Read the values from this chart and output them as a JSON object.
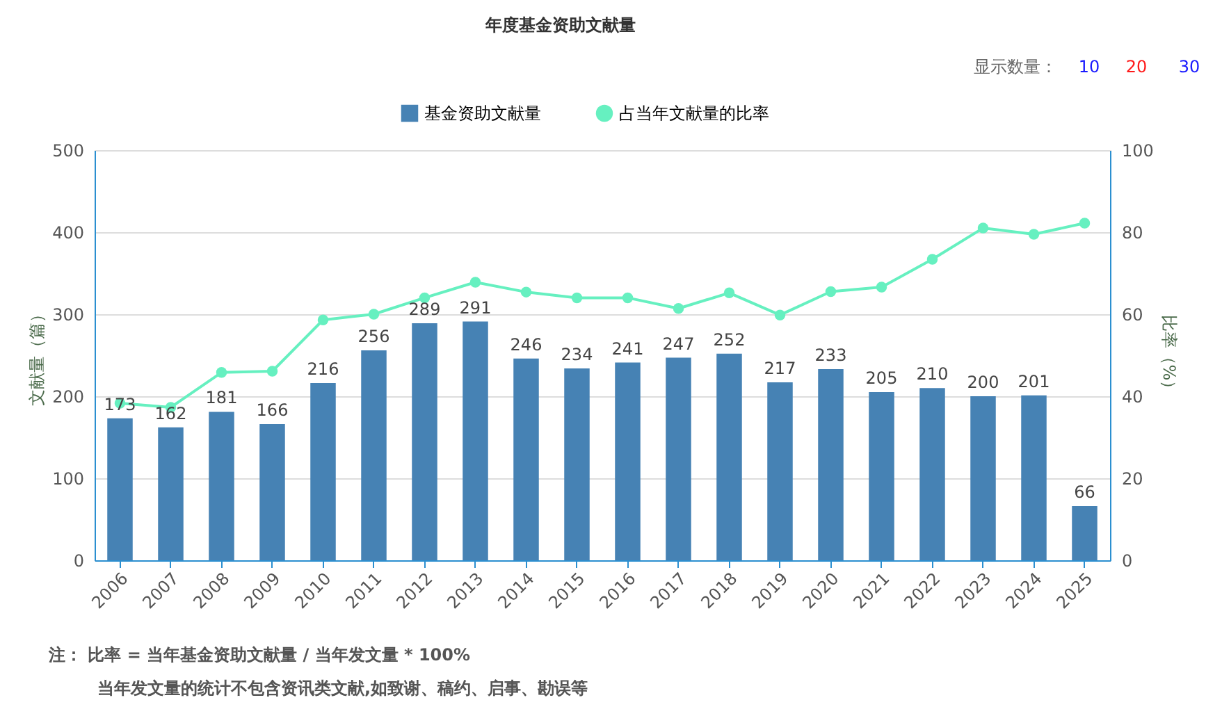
{
  "chart_data": {
    "type": "bar",
    "title": "年度基金资助文献量",
    "categories": [
      "2006",
      "2007",
      "2008",
      "2009",
      "2010",
      "2011",
      "2012",
      "2013",
      "2014",
      "2015",
      "2016",
      "2017",
      "2018",
      "2019",
      "2020",
      "2021",
      "2022",
      "2023",
      "2024",
      "2025"
    ],
    "series": [
      {
        "name": "基金资助文献量",
        "color": "#4682b4",
        "values": [
          173,
          162,
          181,
          166,
          216,
          256,
          289,
          291,
          246,
          234,
          241,
          247,
          252,
          217,
          233,
          205,
          210,
          200,
          201,
          66
        ],
        "value_labels": [
          "173",
          "162",
          "181",
          "166",
          "216",
          "256",
          "289",
          "291",
          "246",
          "234",
          "241",
          "247",
          "252",
          "217",
          "233",
          "205",
          "210",
          "200",
          "201",
          "66"
        ]
      },
      {
        "name": "占当年文献量的比率",
        "type": "line",
        "axis": "y2",
        "color": "#66f0c0",
        "marker": "circle",
        "values": [
          38.3,
          37.3,
          45.8,
          46.1,
          58.6,
          60.0,
          64.0,
          67.8,
          65.4,
          64.0,
          64.0,
          61.4,
          65.2,
          59.8,
          65.5,
          66.6,
          73.4,
          81.0,
          79.5,
          82.2
        ]
      }
    ],
    "ylabel": "文献量（篇）",
    "y2label": "比率（%）",
    "ylim": [
      0,
      500
    ],
    "yticks": [
      0,
      100,
      200,
      300,
      400,
      500
    ],
    "y2lim": [
      0,
      100
    ],
    "y2ticks": [
      0,
      20,
      40,
      60,
      80,
      100
    ],
    "grid": "y",
    "legend": "top",
    "annotations": [
      "显示数量：",
      "10",
      "20",
      "30",
      "注：  比率 = 当年基金资助文献量 / 当年发文量 * 100%",
      "当年发文量的统计不包含资讯类文献,如致谢、稿约、启事、勘误等"
    ]
  }
}
